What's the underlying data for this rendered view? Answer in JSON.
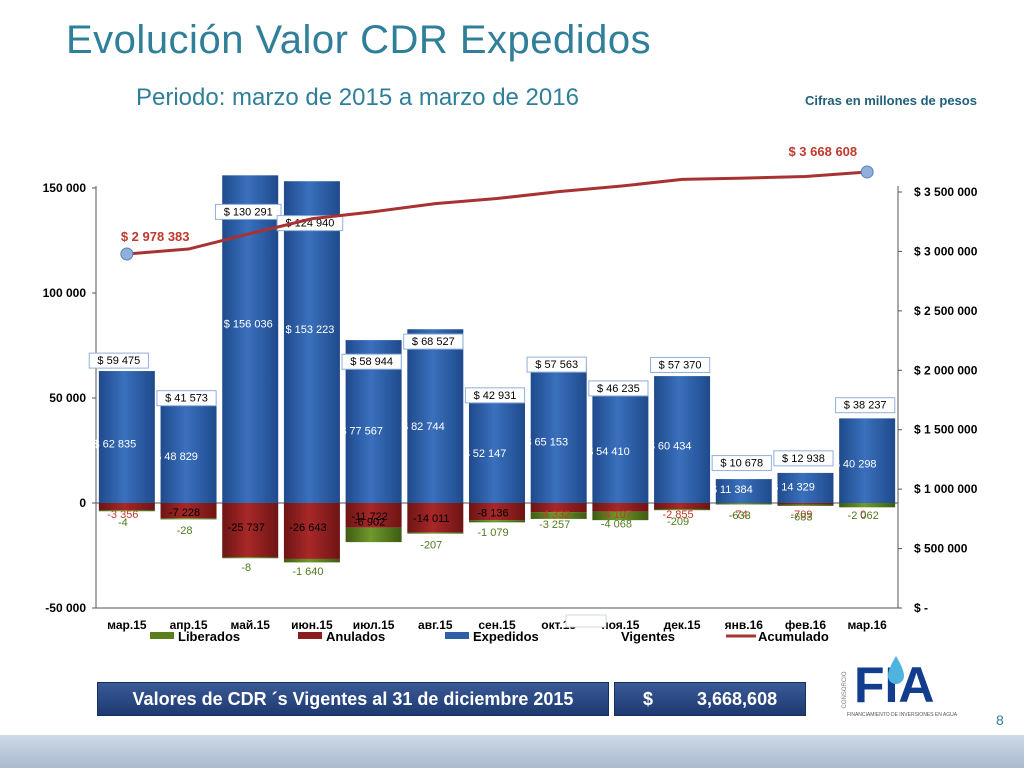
{
  "title": "Evolución Valor CDR Expedidos",
  "subtitle": "Periodo: marzo de 2015 a marzo de 2016",
  "note": "Cifras en millones de pesos",
  "colors": {
    "expedidos": "#2e5fa8",
    "anulados": "#8e1b1b",
    "liberados": "#5b7f1f",
    "acumulado": "#a83232",
    "title": "#2f7f9a"
  },
  "chart_data": {
    "type": "bar",
    "categories": [
      "мар.15",
      "апр.15",
      "май.15",
      "июн.15",
      "июл.15",
      "авг.15",
      "сен.15",
      "окт.15",
      "ноя.15",
      "дек.15",
      "янв.16",
      "фев.16",
      "мар.16"
    ],
    "series": [
      {
        "name": "Liberados",
        "values": [
          -4,
          -28,
          -8,
          -1640,
          -6902,
          -207,
          -1079,
          -3257,
          -4068,
          -209,
          -633,
          -683,
          -2062
        ]
      },
      {
        "name": "Anulados",
        "values": [
          -3356,
          -7228,
          -25737,
          -26643,
          -11722,
          -14011,
          -8136,
          -4332,
          -4107,
          -2855,
          -74,
          -709,
          0
        ]
      },
      {
        "name": "Expedidos",
        "values": [
          62835,
          48829,
          156036,
          153223,
          77567,
          82744,
          52147,
          65153,
          54410,
          60434,
          11384,
          14329,
          40298
        ]
      },
      {
        "name": "Vigentes",
        "values": [
          59475,
          41573,
          130291,
          124940,
          58944,
          68527,
          42931,
          57563,
          46235,
          57370,
          10678,
          12938,
          38237
        ]
      },
      {
        "name": "Acumulado",
        "values": [
          2978383,
          3020000,
          3150000,
          3275000,
          3334000,
          3402000,
          3445000,
          3503000,
          3549000,
          3606000,
          3617000,
          3630000,
          3668608
        ]
      }
    ],
    "labels": {
      "expedidos": [
        "$ 62 835",
        "$ 48 829",
        "$ 156 036",
        "$ 153 223",
        "$ 77 567",
        "$ 82 744",
        "$ 52 147",
        "$ 65 153",
        "$ 54 410",
        "$ 60 434",
        "$ 11 384",
        "$ 14 329",
        "$ 40 298"
      ],
      "vigentes": [
        "$ 59 475",
        "$ 41 573",
        "$ 130 291",
        "$ 124 940",
        "$ 58 944",
        "$ 68 527",
        "$ 42 931",
        "$ 57 563",
        "$ 46 235",
        "$ 57 370",
        "$ 10 678",
        "$ 12 938",
        "$ 38 237"
      ],
      "anulados": [
        "-3 356",
        "-7 228",
        "-25 737",
        "-26 643",
        "-11 722",
        "-14 011",
        "-8 136",
        "-4 332",
        "-4 107",
        "-2 855",
        "-74",
        "-709",
        "0"
      ],
      "liberados": [
        "-4",
        "-28",
        "-8",
        "-1 640",
        "-6 902",
        "-207",
        "-1 079",
        "-3 257",
        "-4 068",
        "-209",
        "-633",
        "-683",
        "-2 062"
      ],
      "acumulado_first": "$ 2 978 383",
      "acumulado_last": "$ 3 668 608"
    },
    "y_left": {
      "ticks": [
        "150 000",
        "100 000",
        "50 000",
        "0",
        "-50 000"
      ],
      "range": [
        -50000,
        150000
      ]
    },
    "y_right": {
      "ticks": [
        "$ 3 500 000",
        "$ 3 000 000",
        "$ 2 500 000",
        "$ 2 000 000",
        "$ 1 500 000",
        "$ 1 000 000",
        "$ 500 000",
        "$ -"
      ],
      "range": [
        0,
        3500000
      ]
    },
    "legend": [
      "Liberados",
      "Anulados",
      "Expedidos",
      "Vigentes",
      "Acumulado"
    ],
    "legend_position": "bottom"
  },
  "banner": {
    "label": "Valores de CDR ´s Vigentes al  31 de  diciembre 2015",
    "currency": "$",
    "value": "3,668,608"
  },
  "logo": {
    "brand": "FIA",
    "side_text": "CONSORCIO",
    "tagline": "FINANCIAMIENTO DE INVERSIONES EN AGUA"
  },
  "page_number": "8"
}
